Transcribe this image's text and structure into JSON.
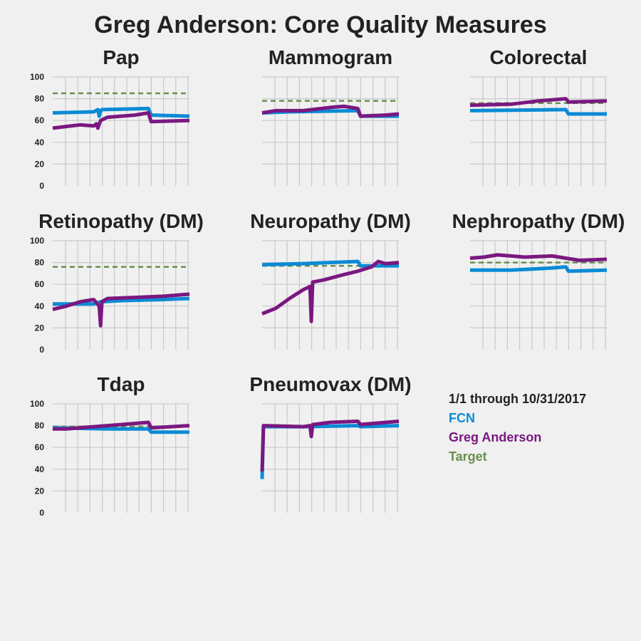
{
  "title": "Greg Anderson: Core Quality Measures",
  "colors": {
    "fcn": "#0a8bd6",
    "greg": "#7a1880",
    "target": "#6a8f4e",
    "grid": "#c9c9c9",
    "background": "#f0f0f0"
  },
  "legend": {
    "heading": "1/1 through 10/31/2017",
    "entries": [
      {
        "label": "FCN",
        "color": "#0a8bd6"
      },
      {
        "label": "Greg Anderson",
        "color": "#7a1880"
      },
      {
        "label": "Target",
        "color": "#6a8f4e"
      }
    ]
  },
  "chart_data": [
    {
      "type": "line",
      "title": "Pap",
      "ylim": [
        0,
        100
      ],
      "yticks": [
        "0",
        "20",
        "40",
        "60",
        "80",
        "100"
      ],
      "show_yticks": true,
      "xlim": [
        0,
        1
      ],
      "grid": true,
      "target": 85,
      "series": [
        {
          "name": "FCN",
          "x": [
            0,
            0.3,
            0.33,
            0.34,
            0.35,
            0.36,
            0.7,
            0.72,
            1
          ],
          "y": [
            67,
            68,
            70,
            64,
            69,
            70,
            71,
            65,
            64
          ]
        },
        {
          "name": "Greg Anderson",
          "x": [
            0,
            0.2,
            0.3,
            0.32,
            0.33,
            0.35,
            0.4,
            0.6,
            0.7,
            0.72,
            1
          ],
          "y": [
            53,
            56,
            55,
            57,
            53,
            60,
            63,
            65,
            67,
            59,
            60
          ]
        }
      ]
    },
    {
      "type": "line",
      "title": "Mammogram",
      "ylim": [
        0,
        100
      ],
      "yticks": [
        "0",
        "20",
        "40",
        "60",
        "80",
        "100"
      ],
      "show_yticks": false,
      "xlim": [
        0,
        1
      ],
      "grid": true,
      "target": 78,
      "series": [
        {
          "name": "FCN",
          "x": [
            0,
            0.2,
            0.7,
            0.72,
            1
          ],
          "y": [
            67,
            68,
            69,
            64,
            64
          ]
        },
        {
          "name": "Greg Anderson",
          "x": [
            0,
            0.1,
            0.3,
            0.5,
            0.6,
            0.7,
            0.72,
            0.9,
            1
          ],
          "y": [
            67,
            69,
            69,
            72,
            73,
            71,
            64,
            65,
            66
          ]
        }
      ]
    },
    {
      "type": "line",
      "title": "Colorectal",
      "ylim": [
        0,
        100
      ],
      "yticks": [
        "0",
        "20",
        "40",
        "60",
        "80",
        "100"
      ],
      "show_yticks": false,
      "xlim": [
        0,
        1
      ],
      "grid": true,
      "target": 76,
      "series": [
        {
          "name": "FCN",
          "x": [
            0,
            0.7,
            0.72,
            1
          ],
          "y": [
            69,
            70,
            66,
            66
          ]
        },
        {
          "name": "Greg Anderson",
          "x": [
            0,
            0.3,
            0.5,
            0.7,
            0.72,
            1
          ],
          "y": [
            74,
            75,
            78,
            80,
            77,
            78
          ]
        }
      ]
    },
    {
      "type": "line",
      "title": "Retinopathy (DM)",
      "ylim": [
        0,
        100
      ],
      "yticks": [
        "0",
        "20",
        "40",
        "60",
        "80",
        "100"
      ],
      "show_yticks": true,
      "xlim": [
        0,
        1
      ],
      "grid": true,
      "target": 76,
      "series": [
        {
          "name": "FCN",
          "x": [
            0,
            0.3,
            0.35,
            0.5,
            0.8,
            1
          ],
          "y": [
            42,
            42,
            44,
            45,
            46,
            47
          ]
        },
        {
          "name": "Greg Anderson",
          "x": [
            0,
            0.1,
            0.2,
            0.3,
            0.34,
            0.35,
            0.36,
            0.4,
            0.6,
            0.8,
            1
          ],
          "y": [
            37,
            40,
            44,
            46,
            40,
            22,
            44,
            47,
            48,
            49,
            51
          ]
        }
      ]
    },
    {
      "type": "line",
      "title": "Neuropathy (DM)",
      "ylim": [
        0,
        100
      ],
      "yticks": [
        "0",
        "20",
        "40",
        "60",
        "80",
        "100"
      ],
      "show_yticks": false,
      "xlim": [
        0,
        1
      ],
      "grid": true,
      "target": 77,
      "series": [
        {
          "name": "FCN",
          "x": [
            0,
            0.3,
            0.7,
            0.72,
            1
          ],
          "y": [
            78,
            79,
            81,
            77,
            77
          ]
        },
        {
          "name": "Greg Anderson",
          "x": [
            0,
            0.1,
            0.2,
            0.3,
            0.35,
            0.36,
            0.37,
            0.45,
            0.6,
            0.7,
            0.8,
            0.85,
            0.9,
            1
          ],
          "y": [
            33,
            38,
            47,
            55,
            58,
            26,
            62,
            64,
            69,
            72,
            76,
            81,
            79,
            80
          ]
        }
      ]
    },
    {
      "type": "line",
      "title": "Nephropathy (DM)",
      "ylim": [
        0,
        100
      ],
      "yticks": [
        "0",
        "20",
        "40",
        "60",
        "80",
        "100"
      ],
      "show_yticks": false,
      "xlim": [
        0,
        1
      ],
      "grid": true,
      "target": 80,
      "series": [
        {
          "name": "FCN",
          "x": [
            0,
            0.3,
            0.6,
            0.7,
            0.72,
            1
          ],
          "y": [
            73,
            73,
            75,
            76,
            72,
            73
          ]
        },
        {
          "name": "Greg Anderson",
          "x": [
            0,
            0.1,
            0.2,
            0.3,
            0.4,
            0.6,
            0.7,
            0.8,
            1
          ],
          "y": [
            84,
            85,
            87,
            86,
            85,
            86,
            84,
            82,
            83
          ]
        }
      ]
    },
    {
      "type": "line",
      "title": "Tdap",
      "ylim": [
        0,
        100
      ],
      "yticks": [
        "0",
        "20",
        "40",
        "60",
        "80",
        "100"
      ],
      "show_yticks": true,
      "xlim": [
        0,
        1
      ],
      "grid": true,
      "target": 79,
      "series": [
        {
          "name": "FCN",
          "x": [
            0,
            0.4,
            0.7,
            0.72,
            1
          ],
          "y": [
            78,
            77,
            77,
            74,
            74
          ]
        },
        {
          "name": "Greg Anderson",
          "x": [
            0,
            0.1,
            0.3,
            0.5,
            0.7,
            0.72,
            1
          ],
          "y": [
            77,
            77,
            79,
            81,
            83,
            78,
            80
          ]
        }
      ]
    },
    {
      "type": "line",
      "title": "Pneumovax (DM)",
      "ylim": [
        0,
        100
      ],
      "yticks": [
        "0",
        "20",
        "40",
        "60",
        "80",
        "100"
      ],
      "show_yticks": false,
      "xlim": [
        0,
        1
      ],
      "grid": true,
      "target": 80,
      "series": [
        {
          "name": "FCN",
          "x": [
            0,
            0.01,
            0.3,
            0.7,
            0.72,
            1
          ],
          "y": [
            31,
            79,
            79,
            80,
            79,
            80
          ]
        },
        {
          "name": "Greg Anderson",
          "x": [
            0,
            0.01,
            0.3,
            0.35,
            0.36,
            0.37,
            0.5,
            0.7,
            0.72,
            1
          ],
          "y": [
            38,
            80,
            79,
            80,
            70,
            81,
            83,
            84,
            81,
            84
          ]
        }
      ]
    }
  ]
}
